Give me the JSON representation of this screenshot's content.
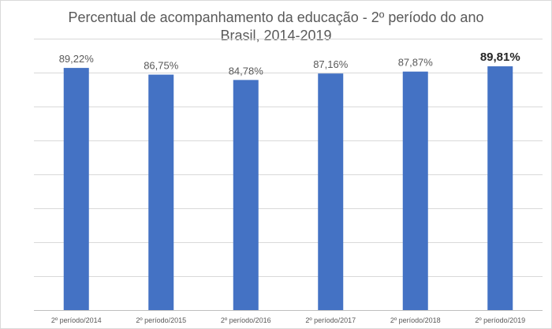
{
  "chart_data": {
    "type": "bar",
    "title": "Percentual de acompanhamento da educação - 2º período do ano",
    "subtitle": "Brasil, 2014-2019",
    "categories": [
      "2º período/2014",
      "2º período/2015",
      "2º período/2016",
      "2º período/2017",
      "2º período/2018",
      "2º período/2019"
    ],
    "values": [
      89.22,
      86.75,
      84.78,
      87.16,
      87.87,
      89.81
    ],
    "data_labels": [
      "89,22%",
      "86,75%",
      "84,78%",
      "87,16%",
      "87,87%",
      "89,81%"
    ],
    "highlighted_label_index": 5,
    "xlabel": "",
    "ylabel": "",
    "ylim": [
      0,
      100
    ],
    "grid": true,
    "y_tick_labels_shown": false,
    "legend": "none",
    "colors": {
      "bar": "#4472c4",
      "grid": "#d9d9d9",
      "text": "#595959",
      "highlight_label": "#262626"
    }
  }
}
